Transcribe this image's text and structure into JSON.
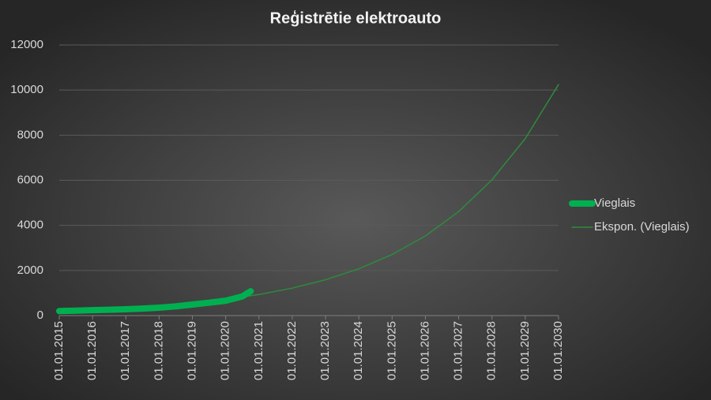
{
  "chart_data": {
    "type": "line",
    "title": "Reģistrētie elektroauto",
    "xlim": [
      "01.01.2015",
      "01.01.2030"
    ],
    "xticks": [
      "01.01.2015",
      "01.01.2016",
      "01.01.2017",
      "01.01.2018",
      "01.01.2019",
      "01.01.2020",
      "01.01.2021",
      "01.01.2022",
      "01.01.2023",
      "01.01.2024",
      "01.01.2025",
      "01.01.2026",
      "01.01.2027",
      "01.01.2028",
      "01.01.2029",
      "01.01.2030"
    ],
    "ylim": [
      0,
      12000
    ],
    "yticks": [
      0,
      2000,
      4000,
      6000,
      8000,
      10000,
      12000
    ],
    "grid": true,
    "series": [
      {
        "name": "Vieglais",
        "color": "#00b050",
        "width": 8,
        "x": [
          "01.01.2015",
          "01.07.2015",
          "01.01.2016",
          "01.07.2016",
          "01.01.2017",
          "01.07.2017",
          "01.01.2018",
          "01.07.2018",
          "01.01.2019",
          "01.07.2019",
          "01.01.2020",
          "01.07.2020",
          "01.10.2020"
        ],
        "values": [
          200,
          220,
          240,
          260,
          280,
          310,
          350,
          410,
          490,
          570,
          660,
          850,
          1080
        ]
      },
      {
        "name": "Ekspon. (Vieglais)",
        "color": "#2e8b3e",
        "width": 1.5,
        "x": [
          "01.01.2015",
          "01.01.2016",
          "01.01.2017",
          "01.01.2018",
          "01.01.2019",
          "01.01.2020",
          "01.01.2021",
          "01.01.2022",
          "01.01.2023",
          "01.01.2024",
          "01.01.2025",
          "01.01.2026",
          "01.01.2027",
          "01.01.2028",
          "01.01.2029",
          "01.01.2030"
        ],
        "values": [
          190,
          247,
          322,
          420,
          548,
          715,
          933,
          1218,
          1589,
          2074,
          2707,
          3532,
          4610,
          6016,
          7851,
          10245
        ]
      }
    ]
  }
}
